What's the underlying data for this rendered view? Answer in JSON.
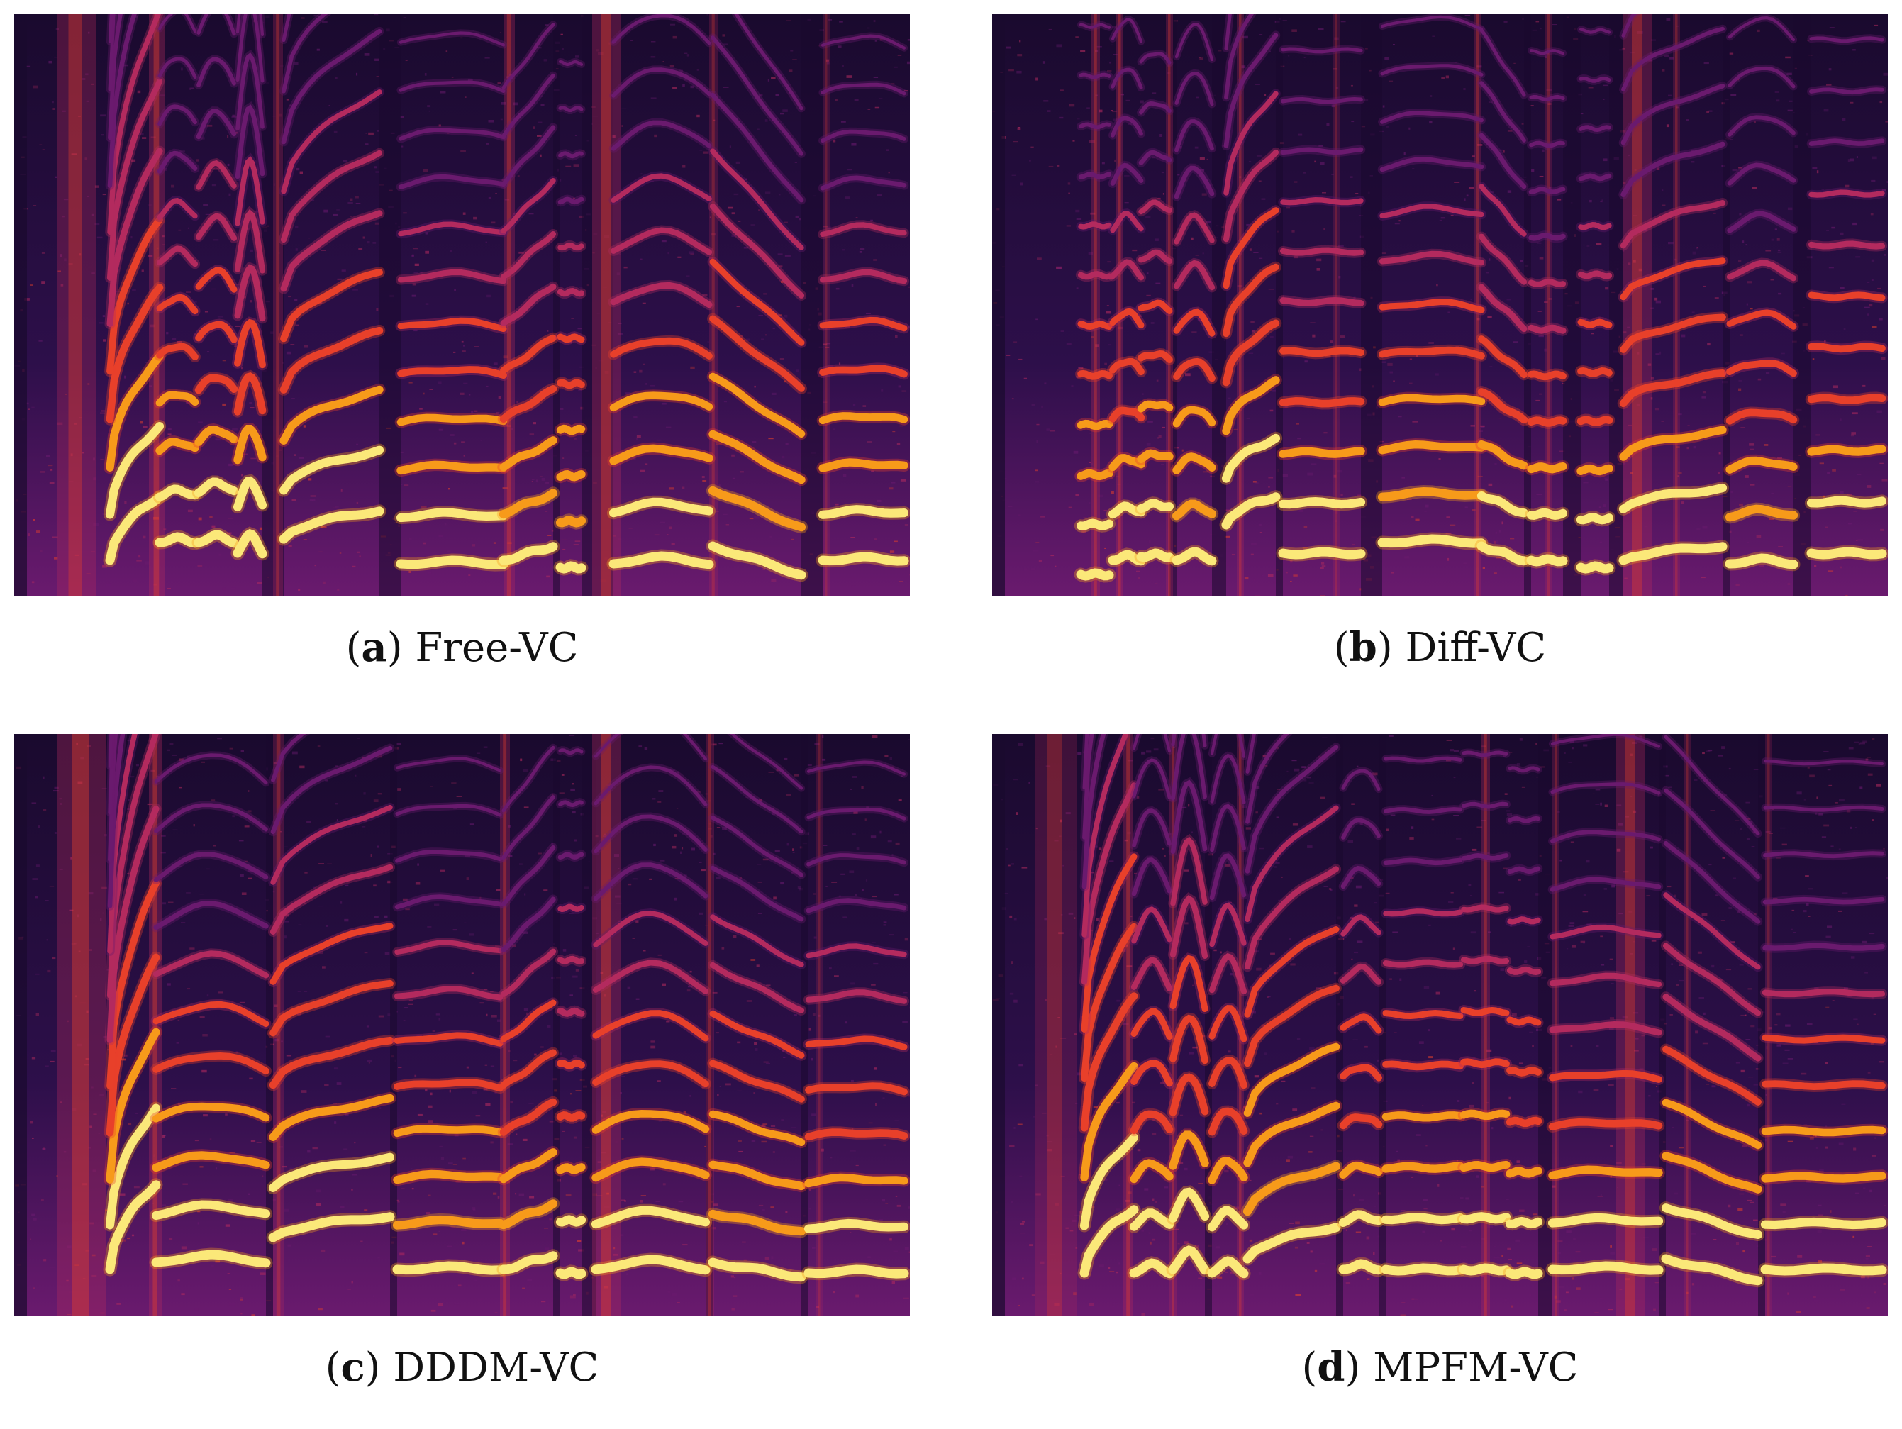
{
  "palette": {
    "background": "#1a0a2e",
    "low": "#2d0f4a",
    "mid_purple": "#6a1a6e",
    "magenta": "#b32a5e",
    "red": "#e8402a",
    "orange": "#f79a1a",
    "yellow": "#fbe879"
  },
  "panels": [
    {
      "letter": "a",
      "caption": "Free-VC"
    },
    {
      "letter": "b",
      "caption": "Diff-VC"
    },
    {
      "letter": "c",
      "caption": "DDDM-VC"
    },
    {
      "letter": "d",
      "caption": "MPFM-VC"
    }
  ]
}
